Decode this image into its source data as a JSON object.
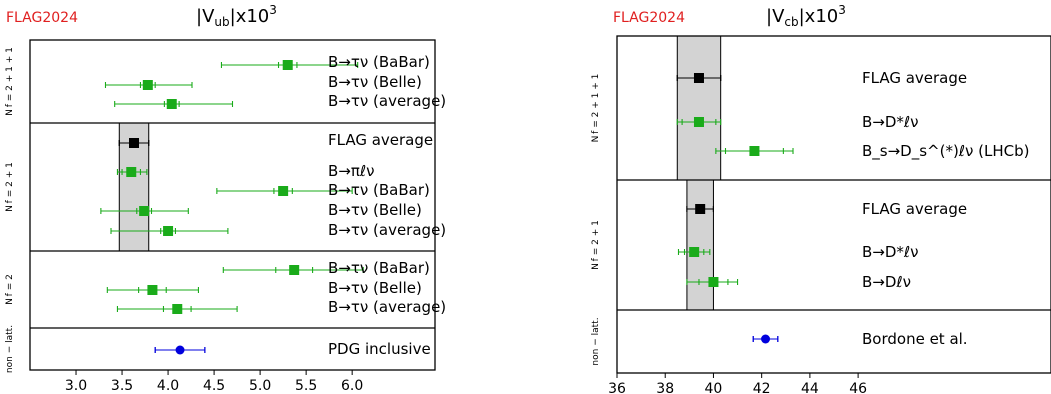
{
  "colors": {
    "lattice": "#1aab1a",
    "average": "#000000",
    "inclusive": "#0000dd",
    "band": "#d3d3d3",
    "flag_brand": "#e02020"
  },
  "chart_data": [
    {
      "type": "scatter",
      "brand": "FLAG2024",
      "title": "|V_ub|x10^3",
      "title_main": "|V",
      "title_sub": "ub",
      "title_rest": "|x10",
      "title_sup": "3",
      "xlim": [
        2.5,
        6.9
      ],
      "xticks": [
        "3.0",
        "3.5",
        "4.0",
        "4.5",
        "5.0",
        "5.5",
        "6.0"
      ],
      "grid": false,
      "sections": [
        {
          "label": "N_f = 2 + 1 + 1",
          "label_text": "N f = 2 + 1 + 1",
          "rows": 3
        },
        {
          "label": "N_f = 2 + 1",
          "label_text": "N f = 2 + 1",
          "rows": 5
        },
        {
          "label": "N_f = 2",
          "label_text": "N f = 2",
          "rows": 3
        },
        {
          "label": "non − latt.",
          "label_text": "non − latt.",
          "rows": 1
        }
      ],
      "bands": [
        {
          "section": 1,
          "low": 3.47,
          "high": 3.79
        }
      ],
      "points": [
        {
          "section": 0,
          "label": "B→τν (BaBar)",
          "value": 5.3,
          "stat": [
            5.2,
            5.4
          ],
          "total": [
            4.58,
            6.06
          ],
          "kind": "lattice"
        },
        {
          "section": 0,
          "label": "B→τν (Belle)",
          "value": 3.78,
          "stat": [
            3.7,
            3.86
          ],
          "total": [
            3.32,
            4.26
          ],
          "kind": "lattice"
        },
        {
          "section": 0,
          "label": "B→τν (average)",
          "value": 4.04,
          "stat": [
            3.96,
            4.12
          ],
          "total": [
            3.42,
            4.7
          ],
          "kind": "lattice"
        },
        {
          "section": 1,
          "label": "FLAG average",
          "value": 3.63,
          "stat": [
            3.47,
            3.79
          ],
          "total": [
            3.47,
            3.79
          ],
          "kind": "average"
        },
        {
          "section": 1,
          "label": "B→πℓν",
          "value": 3.6,
          "stat": [
            3.5,
            3.7
          ],
          "total": [
            3.45,
            3.77
          ],
          "kind": "lattice"
        },
        {
          "section": 1,
          "label": "B→τν (BaBar)",
          "value": 5.25,
          "stat": [
            5.15,
            5.35
          ],
          "total": [
            4.53,
            6.0
          ],
          "kind": "lattice"
        },
        {
          "section": 1,
          "label": "B→τν (Belle)",
          "value": 3.74,
          "stat": [
            3.66,
            3.82
          ],
          "total": [
            3.27,
            4.22
          ],
          "kind": "lattice"
        },
        {
          "section": 1,
          "label": "B→τν (average)",
          "value": 4.0,
          "stat": [
            3.92,
            4.08
          ],
          "total": [
            3.38,
            4.65
          ],
          "kind": "lattice"
        },
        {
          "section": 2,
          "label": "B→τν (BaBar)",
          "value": 5.37,
          "stat": [
            5.17,
            5.57
          ],
          "total": [
            4.6,
            6.12
          ],
          "kind": "lattice"
        },
        {
          "section": 2,
          "label": "B→τν (Belle)",
          "value": 3.83,
          "stat": [
            3.68,
            3.98
          ],
          "total": [
            3.34,
            4.33
          ],
          "kind": "lattice"
        },
        {
          "section": 2,
          "label": "B→τν (average)",
          "value": 4.1,
          "stat": [
            3.95,
            4.25
          ],
          "total": [
            3.45,
            4.75
          ],
          "kind": "lattice"
        },
        {
          "section": 3,
          "label": "PDG inclusive",
          "value": 4.13,
          "stat": [
            3.86,
            4.4
          ],
          "total": [
            3.86,
            4.4
          ],
          "kind": "inclusive"
        }
      ]
    },
    {
      "type": "scatter",
      "brand": "FLAG2024",
      "title": "|V_cb|x10^3",
      "title_main": "|V",
      "title_sub": "cb",
      "title_rest": "|x10",
      "title_sup": "3",
      "xlim": [
        36,
        54
      ],
      "xticks": [
        "36",
        "38",
        "40",
        "42",
        "44",
        "46"
      ],
      "grid": false,
      "sections": [
        {
          "label": "N_f = 2 + 1 + 1",
          "label_text": "N f = 2 + 1 + 1",
          "rows": 3
        },
        {
          "label": "N_f = 2 + 1",
          "label_text": "N f = 2 + 1",
          "rows": 3
        },
        {
          "label": "non − latt.",
          "label_text": "non − latt.",
          "rows": 1
        }
      ],
      "bands": [
        {
          "section": 0,
          "low": 38.5,
          "high": 40.3
        },
        {
          "section": 1,
          "low": 38.9,
          "high": 40.0
        }
      ],
      "points": [
        {
          "section": 0,
          "label": "FLAG average",
          "value": 39.4,
          "stat": [
            38.5,
            40.3
          ],
          "total": [
            38.5,
            40.3
          ],
          "kind": "average"
        },
        {
          "section": 0,
          "label": "B→D*ℓν",
          "value": 39.4,
          "stat": [
            38.7,
            40.1
          ],
          "total": [
            38.5,
            40.3
          ],
          "kind": "lattice"
        },
        {
          "section": 0,
          "label": "B_s→D_s^(*)ℓν (LHCb)",
          "value": 41.7,
          "stat": [
            40.5,
            42.9
          ],
          "total": [
            40.1,
            43.3
          ],
          "kind": "lattice"
        },
        {
          "section": 1,
          "label": "FLAG average",
          "value": 39.45,
          "stat": [
            38.9,
            40.0
          ],
          "total": [
            38.9,
            40.0
          ],
          "kind": "average"
        },
        {
          "section": 1,
          "label": "B→D*ℓν",
          "value": 39.2,
          "stat": [
            38.8,
            39.6
          ],
          "total": [
            38.55,
            39.85
          ],
          "kind": "lattice"
        },
        {
          "section": 1,
          "label": "B→Dℓν",
          "value": 40.0,
          "stat": [
            39.4,
            40.6
          ],
          "total": [
            38.9,
            41.0
          ],
          "kind": "lattice"
        },
        {
          "section": 2,
          "label": "Bordone et al.",
          "value": 42.16,
          "stat": [
            41.65,
            42.67
          ],
          "total": [
            41.65,
            42.67
          ],
          "kind": "inclusive"
        }
      ]
    }
  ]
}
